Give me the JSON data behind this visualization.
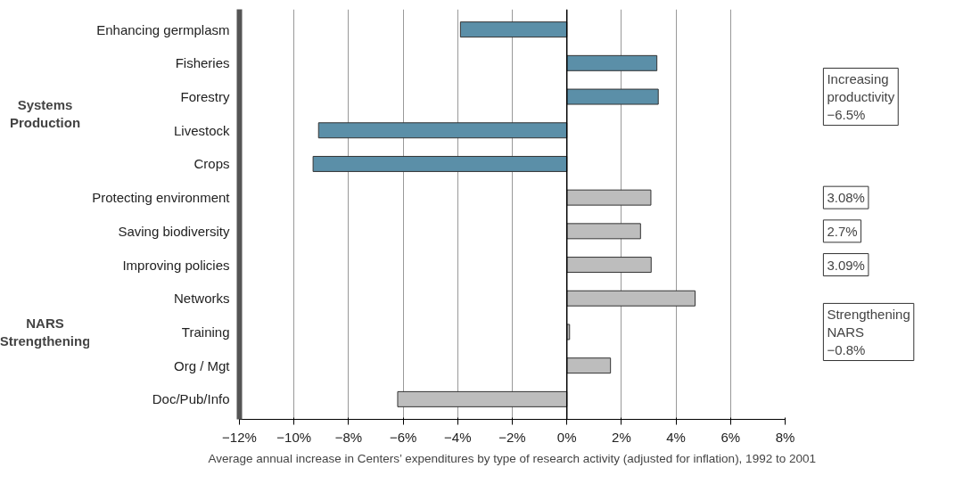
{
  "chart_data": {
    "type": "bar",
    "orientation": "horizontal",
    "xlabel": "Average annual increase in Centers’ expenditures by type of research activity (adjusted for inflation), 1992 to 2001",
    "categories": [
      "Enhancing germplasm",
      "Fisheries",
      "Forestry",
      "Livestock",
      "Crops",
      "Protecting environment",
      "Saving biodiversity",
      "Improving policies",
      "Networks",
      "Training",
      "Org / Mgt",
      "Doc/Pub/Info"
    ],
    "values": [
      -3.9,
      3.3,
      3.35,
      -9.1,
      -9.3,
      3.08,
      2.7,
      3.09,
      4.7,
      0.1,
      1.6,
      -6.2
    ],
    "colors": [
      "#5b8fa8",
      "#5b8fa8",
      "#5b8fa8",
      "#5b8fa8",
      "#5b8fa8",
      "#bdbdbd",
      "#bdbdbd",
      "#bdbdbd",
      "#bdbdbd",
      "#bdbdbd",
      "#bdbdbd",
      "#bdbdbd"
    ],
    "xlim": [
      -12,
      8
    ],
    "xticks": [
      {
        "value": -12,
        "label": "−12%"
      },
      {
        "value": -10,
        "label": "−10%"
      },
      {
        "value": -8,
        "label": "−8%"
      },
      {
        "value": -6,
        "label": "−6%"
      },
      {
        "value": -4,
        "label": "−4%"
      },
      {
        "value": -2,
        "label": "−2%"
      },
      {
        "value": 0,
        "label": "0%"
      },
      {
        "value": 2,
        "label": "2%"
      },
      {
        "value": 4,
        "label": "4%"
      },
      {
        "value": 6,
        "label": "6%"
      },
      {
        "value": 8,
        "label": "8%"
      }
    ],
    "grid": "x",
    "ref_lines": [
      {
        "axis": "x",
        "value": 0,
        "color": "#000000"
      }
    ],
    "annotations": [
      "Systems\nProduction",
      "NARS\nStrengthening",
      "Increasing\nproductivity\n−6.5%",
      "3.08%",
      "2.7%",
      "3.09%",
      "Strengthening\nNARS\n−0.8%"
    ]
  }
}
